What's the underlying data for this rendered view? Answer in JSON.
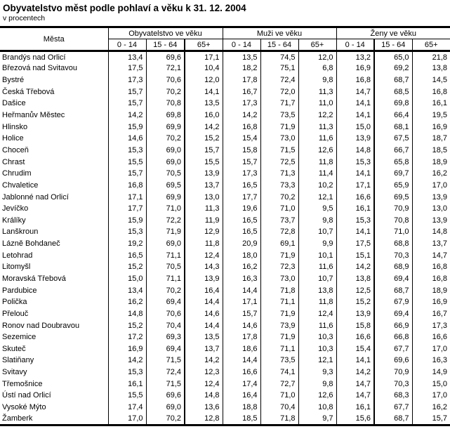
{
  "title": "Obyvatelstvo měst podle pohlaví a věku k 31. 12. 2004",
  "subtitle": "v procentech",
  "colors": {
    "text": "#000000",
    "background": "#ffffff",
    "border": "#000000"
  },
  "table": {
    "city_header": "Města",
    "groups": [
      {
        "label": "Obyvatelstvo ve věku"
      },
      {
        "label": "Muži ve věku"
      },
      {
        "label": "Ženy ve věku"
      }
    ],
    "age_cols": [
      "0 - 14",
      "15 - 64",
      "65+"
    ],
    "rows": [
      {
        "name": "Brandýs nad Orlicí",
        "values": [
          "13,4",
          "69,6",
          "17,1",
          "13,5",
          "74,5",
          "12,0",
          "13,2",
          "65,0",
          "21,8"
        ]
      },
      {
        "name": "Březová nad Svitavou",
        "values": [
          "17,5",
          "72,1",
          "10,4",
          "18,2",
          "75,1",
          "6,8",
          "16,9",
          "69,2",
          "13,8"
        ]
      },
      {
        "name": "Bystré",
        "values": [
          "17,3",
          "70,6",
          "12,0",
          "17,8",
          "72,4",
          "9,8",
          "16,8",
          "68,7",
          "14,5"
        ]
      },
      {
        "name": "Česká Třebová",
        "values": [
          "15,7",
          "70,2",
          "14,1",
          "16,7",
          "72,0",
          "11,3",
          "14,7",
          "68,5",
          "16,8"
        ]
      },
      {
        "name": "Dašice",
        "values": [
          "15,7",
          "70,8",
          "13,5",
          "17,3",
          "71,7",
          "11,0",
          "14,1",
          "69,8",
          "16,1"
        ]
      },
      {
        "name": "Heřmanův Městec",
        "values": [
          "14,2",
          "69,8",
          "16,0",
          "14,2",
          "73,5",
          "12,2",
          "14,1",
          "66,4",
          "19,5"
        ]
      },
      {
        "name": "Hlinsko",
        "values": [
          "15,9",
          "69,9",
          "14,2",
          "16,8",
          "71,9",
          "11,3",
          "15,0",
          "68,1",
          "16,9"
        ]
      },
      {
        "name": "Holice",
        "values": [
          "14,6",
          "70,2",
          "15,2",
          "15,4",
          "73,0",
          "11,6",
          "13,9",
          "67,5",
          "18,7"
        ]
      },
      {
        "name": "Choceň",
        "values": [
          "15,3",
          "69,0",
          "15,7",
          "15,8",
          "71,5",
          "12,6",
          "14,8",
          "66,7",
          "18,5"
        ]
      },
      {
        "name": "Chrast",
        "values": [
          "15,5",
          "69,0",
          "15,5",
          "15,7",
          "72,5",
          "11,8",
          "15,3",
          "65,8",
          "18,9"
        ]
      },
      {
        "name": "Chrudim",
        "values": [
          "15,7",
          "70,5",
          "13,9",
          "17,3",
          "71,3",
          "11,4",
          "14,1",
          "69,7",
          "16,2"
        ]
      },
      {
        "name": "Chvaletice",
        "values": [
          "16,8",
          "69,5",
          "13,7",
          "16,5",
          "73,3",
          "10,2",
          "17,1",
          "65,9",
          "17,0"
        ]
      },
      {
        "name": "Jablonné nad Orlicí",
        "values": [
          "17,1",
          "69,9",
          "13,0",
          "17,7",
          "70,2",
          "12,1",
          "16,6",
          "69,5",
          "13,9"
        ]
      },
      {
        "name": "Jevíčko",
        "values": [
          "17,7",
          "71,0",
          "11,3",
          "19,6",
          "71,0",
          "9,5",
          "16,1",
          "70,9",
          "13,0"
        ]
      },
      {
        "name": "Králíky",
        "values": [
          "15,9",
          "72,2",
          "11,9",
          "16,5",
          "73,7",
          "9,8",
          "15,3",
          "70,8",
          "13,9"
        ]
      },
      {
        "name": "Lanškroun",
        "values": [
          "15,3",
          "71,9",
          "12,9",
          "16,5",
          "72,8",
          "10,7",
          "14,1",
          "71,0",
          "14,8"
        ]
      },
      {
        "name": "Lázně Bohdaneč",
        "values": [
          "19,2",
          "69,0",
          "11,8",
          "20,9",
          "69,1",
          "9,9",
          "17,5",
          "68,8",
          "13,7"
        ]
      },
      {
        "name": "Letohrad",
        "values": [
          "16,5",
          "71,1",
          "12,4",
          "18,0",
          "71,9",
          "10,1",
          "15,1",
          "70,3",
          "14,7"
        ]
      },
      {
        "name": "Litomyšl",
        "values": [
          "15,2",
          "70,5",
          "14,3",
          "16,2",
          "72,3",
          "11,6",
          "14,2",
          "68,9",
          "16,8"
        ]
      },
      {
        "name": "Moravská Třebová",
        "values": [
          "15,0",
          "71,1",
          "13,9",
          "16,3",
          "73,0",
          "10,7",
          "13,8",
          "69,4",
          "16,8"
        ]
      },
      {
        "name": "Pardubice",
        "values": [
          "13,4",
          "70,2",
          "16,4",
          "14,4",
          "71,8",
          "13,8",
          "12,5",
          "68,7",
          "18,9"
        ]
      },
      {
        "name": "Polička",
        "values": [
          "16,2",
          "69,4",
          "14,4",
          "17,1",
          "71,1",
          "11,8",
          "15,2",
          "67,9",
          "16,9"
        ]
      },
      {
        "name": "Přelouč",
        "values": [
          "14,8",
          "70,6",
          "14,6",
          "15,7",
          "71,9",
          "12,4",
          "13,9",
          "69,4",
          "16,7"
        ]
      },
      {
        "name": "Ronov nad Doubravou",
        "values": [
          "15,2",
          "70,4",
          "14,4",
          "14,6",
          "73,9",
          "11,6",
          "15,8",
          "66,9",
          "17,3"
        ]
      },
      {
        "name": "Sezemice",
        "values": [
          "17,2",
          "69,3",
          "13,5",
          "17,8",
          "71,9",
          "10,3",
          "16,6",
          "66,8",
          "16,6"
        ]
      },
      {
        "name": "Skuteč",
        "values": [
          "16,9",
          "69,4",
          "13,7",
          "18,6",
          "71,1",
          "10,3",
          "15,4",
          "67,7",
          "17,0"
        ]
      },
      {
        "name": "Slatiňany",
        "values": [
          "14,2",
          "71,5",
          "14,2",
          "14,4",
          "73,5",
          "12,1",
          "14,1",
          "69,6",
          "16,3"
        ]
      },
      {
        "name": "Svitavy",
        "values": [
          "15,3",
          "72,4",
          "12,3",
          "16,6",
          "74,1",
          "9,3",
          "14,2",
          "70,9",
          "14,9"
        ]
      },
      {
        "name": "Třemošnice",
        "values": [
          "16,1",
          "71,5",
          "12,4",
          "17,4",
          "72,7",
          "9,8",
          "14,7",
          "70,3",
          "15,0"
        ]
      },
      {
        "name": "Ústí nad Orlicí",
        "values": [
          "15,5",
          "69,6",
          "14,8",
          "16,4",
          "71,0",
          "12,6",
          "14,7",
          "68,3",
          "17,0"
        ]
      },
      {
        "name": "Vysoké Mýto",
        "values": [
          "17,4",
          "69,0",
          "13,6",
          "18,8",
          "70,4",
          "10,8",
          "16,1",
          "67,7",
          "16,2"
        ]
      },
      {
        "name": "Žamberk",
        "values": [
          "17,0",
          "70,2",
          "12,8",
          "18,5",
          "71,8",
          "9,7",
          "15,6",
          "68,7",
          "15,7"
        ]
      }
    ]
  }
}
